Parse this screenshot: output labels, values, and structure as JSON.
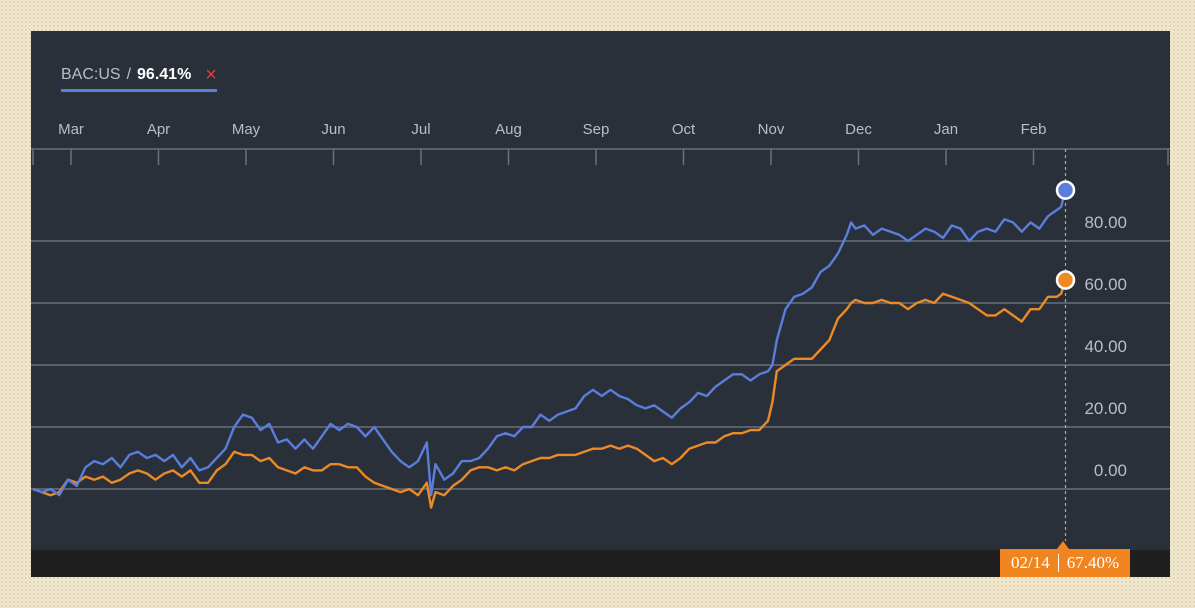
{
  "legend": {
    "ticker": "BAC:US",
    "separator": "/",
    "percent": "96.41%",
    "close_symbol": "×"
  },
  "tooltip": {
    "date": "02/14",
    "value": "67.40%"
  },
  "colors": {
    "background": "#29303a",
    "series_blue": "#5b7ddc",
    "series_orange": "#ec8a26",
    "gridline": "#6b717a",
    "text": "#b9bec6"
  },
  "chart_data": {
    "type": "line",
    "title": "",
    "xlabel": "",
    "ylabel": "",
    "x_tick_labels": [
      "Mar",
      "Apr",
      "May",
      "Jun",
      "Jul",
      "Aug",
      "Sep",
      "Oct",
      "Nov",
      "Dec",
      "Jan",
      "Feb"
    ],
    "y_tick_labels": [
      "80.00",
      "60.00",
      "40.00",
      "20.00",
      "0.00"
    ],
    "y_ticks": [
      80,
      60,
      40,
      20,
      0
    ],
    "ylim": [
      -14.3,
      109
    ],
    "x_unit": "months since start of chart (Mar = 0.5)",
    "xlim": [
      0,
      12.4
    ],
    "grid": true,
    "legend_position": "top-left",
    "series": [
      {
        "name": "BAC:US",
        "color": "#5b7ddc",
        "end_value": 96.41,
        "points": [
          [
            0,
            0
          ],
          [
            0.1,
            -1
          ],
          [
            0.2,
            0
          ],
          [
            0.3,
            -2
          ],
          [
            0.4,
            3
          ],
          [
            0.5,
            1
          ],
          [
            0.6,
            7
          ],
          [
            0.7,
            9
          ],
          [
            0.8,
            8
          ],
          [
            0.9,
            10
          ],
          [
            1.0,
            7
          ],
          [
            1.1,
            11
          ],
          [
            1.2,
            12
          ],
          [
            1.3,
            10
          ],
          [
            1.4,
            11
          ],
          [
            1.5,
            9
          ],
          [
            1.6,
            11
          ],
          [
            1.7,
            7
          ],
          [
            1.8,
            10
          ],
          [
            1.9,
            6
          ],
          [
            2.0,
            7
          ],
          [
            2.1,
            10
          ],
          [
            2.2,
            13
          ],
          [
            2.3,
            20
          ],
          [
            2.4,
            24
          ],
          [
            2.5,
            23
          ],
          [
            2.6,
            19
          ],
          [
            2.7,
            21
          ],
          [
            2.8,
            15
          ],
          [
            2.9,
            16
          ],
          [
            3.0,
            13
          ],
          [
            3.1,
            16
          ],
          [
            3.2,
            13
          ],
          [
            3.3,
            17
          ],
          [
            3.4,
            21
          ],
          [
            3.5,
            19
          ],
          [
            3.6,
            21
          ],
          [
            3.7,
            20
          ],
          [
            3.8,
            17
          ],
          [
            3.9,
            20
          ],
          [
            4.0,
            16
          ],
          [
            4.1,
            12
          ],
          [
            4.2,
            9
          ],
          [
            4.3,
            7
          ],
          [
            4.4,
            9
          ],
          [
            4.5,
            15
          ],
          [
            4.55,
            -2
          ],
          [
            4.6,
            8
          ],
          [
            4.7,
            3
          ],
          [
            4.8,
            5
          ],
          [
            4.9,
            9
          ],
          [
            5.0,
            9
          ],
          [
            5.1,
            10
          ],
          [
            5.2,
            13
          ],
          [
            5.3,
            17
          ],
          [
            5.4,
            18
          ],
          [
            5.5,
            17
          ],
          [
            5.6,
            20
          ],
          [
            5.7,
            20
          ],
          [
            5.8,
            24
          ],
          [
            5.9,
            22
          ],
          [
            6.0,
            24
          ],
          [
            6.1,
            25
          ],
          [
            6.2,
            26
          ],
          [
            6.3,
            30
          ],
          [
            6.4,
            32
          ],
          [
            6.5,
            30
          ],
          [
            6.6,
            32
          ],
          [
            6.7,
            30
          ],
          [
            6.8,
            29
          ],
          [
            6.9,
            27
          ],
          [
            7.0,
            26
          ],
          [
            7.1,
            27
          ],
          [
            7.2,
            25
          ],
          [
            7.3,
            23
          ],
          [
            7.4,
            26
          ],
          [
            7.5,
            28
          ],
          [
            7.6,
            31
          ],
          [
            7.7,
            30
          ],
          [
            7.8,
            33
          ],
          [
            7.9,
            35
          ],
          [
            8.0,
            37
          ],
          [
            8.1,
            37
          ],
          [
            8.2,
            35
          ],
          [
            8.3,
            37
          ],
          [
            8.4,
            38
          ],
          [
            8.45,
            40
          ],
          [
            8.5,
            48
          ],
          [
            8.6,
            58
          ],
          [
            8.7,
            62
          ],
          [
            8.8,
            63
          ],
          [
            8.9,
            65
          ],
          [
            9.0,
            70
          ],
          [
            9.1,
            72
          ],
          [
            9.2,
            76
          ],
          [
            9.3,
            82
          ],
          [
            9.35,
            86
          ],
          [
            9.4,
            84
          ],
          [
            9.5,
            85
          ],
          [
            9.6,
            82
          ],
          [
            9.7,
            84
          ],
          [
            9.8,
            83
          ],
          [
            9.9,
            82
          ],
          [
            10.0,
            80
          ],
          [
            10.1,
            82
          ],
          [
            10.2,
            84
          ],
          [
            10.3,
            83
          ],
          [
            10.4,
            81
          ],
          [
            10.5,
            85
          ],
          [
            10.6,
            84
          ],
          [
            10.7,
            80
          ],
          [
            10.8,
            83
          ],
          [
            10.9,
            84
          ],
          [
            11.0,
            83
          ],
          [
            11.1,
            87
          ],
          [
            11.2,
            86
          ],
          [
            11.3,
            83
          ],
          [
            11.4,
            86
          ],
          [
            11.5,
            84
          ],
          [
            11.6,
            88
          ],
          [
            11.7,
            90
          ],
          [
            11.75,
            91
          ],
          [
            11.8,
            96.41
          ]
        ]
      },
      {
        "name": "",
        "color": "#ec8a26",
        "end_value": 67.4,
        "points": [
          [
            0,
            0
          ],
          [
            0.1,
            -1
          ],
          [
            0.2,
            -2
          ],
          [
            0.3,
            -1
          ],
          [
            0.4,
            3
          ],
          [
            0.5,
            2
          ],
          [
            0.6,
            4
          ],
          [
            0.7,
            3
          ],
          [
            0.8,
            4
          ],
          [
            0.9,
            2
          ],
          [
            1.0,
            3
          ],
          [
            1.1,
            5
          ],
          [
            1.2,
            6
          ],
          [
            1.3,
            5
          ],
          [
            1.4,
            3
          ],
          [
            1.5,
            5
          ],
          [
            1.6,
            6
          ],
          [
            1.7,
            4
          ],
          [
            1.8,
            6
          ],
          [
            1.9,
            2
          ],
          [
            2.0,
            2
          ],
          [
            2.1,
            6
          ],
          [
            2.2,
            8
          ],
          [
            2.3,
            12
          ],
          [
            2.4,
            11
          ],
          [
            2.5,
            11
          ],
          [
            2.6,
            9
          ],
          [
            2.7,
            10
          ],
          [
            2.8,
            7
          ],
          [
            2.9,
            6
          ],
          [
            3.0,
            5
          ],
          [
            3.1,
            7
          ],
          [
            3.2,
            6
          ],
          [
            3.3,
            6
          ],
          [
            3.4,
            8
          ],
          [
            3.5,
            8
          ],
          [
            3.6,
            7
          ],
          [
            3.7,
            7
          ],
          [
            3.8,
            4
          ],
          [
            3.9,
            2
          ],
          [
            4.0,
            1
          ],
          [
            4.1,
            0
          ],
          [
            4.2,
            -1
          ],
          [
            4.3,
            0
          ],
          [
            4.4,
            -2
          ],
          [
            4.5,
            2
          ],
          [
            4.55,
            -6
          ],
          [
            4.6,
            -1
          ],
          [
            4.7,
            -2
          ],
          [
            4.8,
            1
          ],
          [
            4.9,
            3
          ],
          [
            5.0,
            6
          ],
          [
            5.1,
            7
          ],
          [
            5.2,
            7
          ],
          [
            5.3,
            6
          ],
          [
            5.4,
            7
          ],
          [
            5.5,
            6
          ],
          [
            5.6,
            8
          ],
          [
            5.7,
            9
          ],
          [
            5.8,
            10
          ],
          [
            5.9,
            10
          ],
          [
            6.0,
            11
          ],
          [
            6.1,
            11
          ],
          [
            6.2,
            11
          ],
          [
            6.3,
            12
          ],
          [
            6.4,
            13
          ],
          [
            6.5,
            13
          ],
          [
            6.6,
            14
          ],
          [
            6.7,
            13
          ],
          [
            6.8,
            14
          ],
          [
            6.9,
            13
          ],
          [
            7.0,
            11
          ],
          [
            7.1,
            9
          ],
          [
            7.2,
            10
          ],
          [
            7.3,
            8
          ],
          [
            7.4,
            10
          ],
          [
            7.5,
            13
          ],
          [
            7.6,
            14
          ],
          [
            7.7,
            15
          ],
          [
            7.8,
            15
          ],
          [
            7.9,
            17
          ],
          [
            8.0,
            18
          ],
          [
            8.1,
            18
          ],
          [
            8.2,
            19
          ],
          [
            8.3,
            19
          ],
          [
            8.4,
            22
          ],
          [
            8.45,
            28
          ],
          [
            8.5,
            38
          ],
          [
            8.6,
            40
          ],
          [
            8.7,
            42
          ],
          [
            8.8,
            42
          ],
          [
            8.9,
            42
          ],
          [
            9.0,
            45
          ],
          [
            9.1,
            48
          ],
          [
            9.2,
            55
          ],
          [
            9.3,
            58
          ],
          [
            9.35,
            60
          ],
          [
            9.4,
            61
          ],
          [
            9.5,
            60
          ],
          [
            9.6,
            60
          ],
          [
            9.7,
            61
          ],
          [
            9.8,
            60
          ],
          [
            9.9,
            60
          ],
          [
            10.0,
            58
          ],
          [
            10.1,
            60
          ],
          [
            10.2,
            61
          ],
          [
            10.3,
            60
          ],
          [
            10.4,
            63
          ],
          [
            10.5,
            62
          ],
          [
            10.6,
            61
          ],
          [
            10.7,
            60
          ],
          [
            10.8,
            58
          ],
          [
            10.9,
            56
          ],
          [
            11.0,
            56
          ],
          [
            11.1,
            58
          ],
          [
            11.2,
            56
          ],
          [
            11.3,
            54
          ],
          [
            11.4,
            58
          ],
          [
            11.5,
            58
          ],
          [
            11.6,
            62
          ],
          [
            11.7,
            62
          ],
          [
            11.75,
            63
          ],
          [
            11.8,
            67.4
          ]
        ]
      }
    ],
    "highlight": {
      "date": "02/14",
      "values": [
        96.41,
        67.4
      ]
    }
  }
}
